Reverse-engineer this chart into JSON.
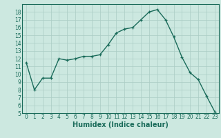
{
  "x": [
    0,
    1,
    2,
    3,
    4,
    5,
    6,
    7,
    8,
    9,
    10,
    11,
    12,
    13,
    14,
    15,
    16,
    17,
    18,
    19,
    20,
    21,
    22,
    23
  ],
  "y": [
    11.5,
    8.0,
    9.5,
    9.5,
    12.0,
    11.8,
    12.0,
    12.3,
    12.3,
    12.5,
    13.8,
    15.3,
    15.8,
    16.0,
    17.0,
    18.0,
    18.3,
    17.0,
    14.8,
    12.2,
    10.2,
    9.3,
    7.2,
    5.2
  ],
  "line_color": "#1a6b5a",
  "marker": "+",
  "marker_size": 3,
  "background_color": "#cce8e0",
  "grid_color": "#aaccc4",
  "xlabel": "Humidex (Indice chaleur)",
  "xlabel_fontsize": 7,
  "xlim": [
    -0.5,
    23.5
  ],
  "ylim": [
    5,
    19
  ],
  "yticks": [
    5,
    6,
    7,
    8,
    9,
    10,
    11,
    12,
    13,
    14,
    15,
    16,
    17,
    18
  ],
  "xticks": [
    0,
    1,
    2,
    3,
    4,
    5,
    6,
    7,
    8,
    9,
    10,
    11,
    12,
    13,
    14,
    15,
    16,
    17,
    18,
    19,
    20,
    21,
    22,
    23
  ],
  "tick_fontsize": 5.5,
  "line_width": 1.0
}
